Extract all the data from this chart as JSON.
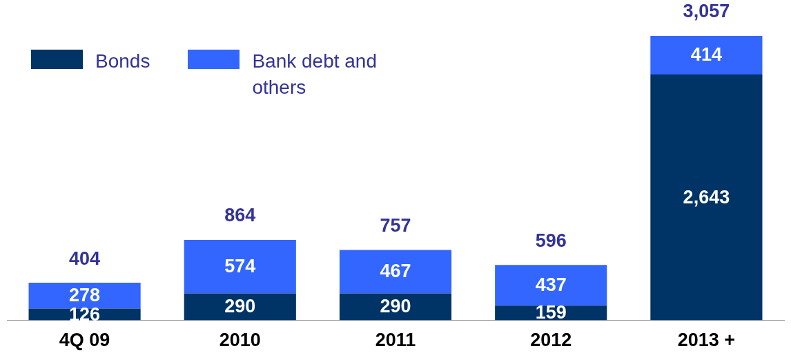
{
  "chart_data": {
    "type": "bar",
    "stacked": true,
    "categories": [
      "4Q 09",
      "2010",
      "2011",
      "2012",
      "2013 +"
    ],
    "series": [
      {
        "name": "Bonds",
        "color": "#003366",
        "values": [
          126,
          290,
          290,
          159,
          2643
        ],
        "value_labels": [
          "126",
          "290",
          "290",
          "159",
          "2,643"
        ]
      },
      {
        "name": "Bank debt and others",
        "color": "#3366ff",
        "values": [
          278,
          574,
          467,
          437,
          414
        ],
        "value_labels": [
          "278",
          "574",
          "467",
          "437",
          "414"
        ]
      }
    ],
    "totals": [
      "404",
      "864",
      "757",
      "596",
      "3,057"
    ],
    "legend": "top left",
    "grid": false
  }
}
